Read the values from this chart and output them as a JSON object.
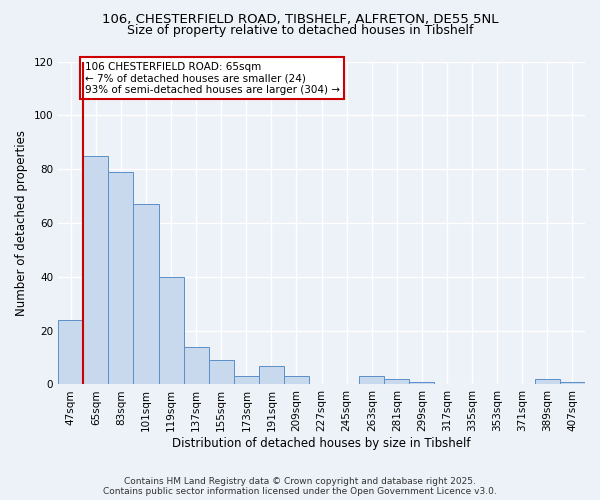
{
  "title_line1": "106, CHESTERFIELD ROAD, TIBSHELF, ALFRETON, DE55 5NL",
  "title_line2": "Size of property relative to detached houses in Tibshelf",
  "xlabel": "Distribution of detached houses by size in Tibshelf",
  "ylabel": "Number of detached properties",
  "categories": [
    "47sqm",
    "65sqm",
    "83sqm",
    "101sqm",
    "119sqm",
    "137sqm",
    "155sqm",
    "173sqm",
    "191sqm",
    "209sqm",
    "227sqm",
    "245sqm",
    "263sqm",
    "281sqm",
    "299sqm",
    "317sqm",
    "335sqm",
    "353sqm",
    "371sqm",
    "389sqm",
    "407sqm"
  ],
  "values": [
    24,
    85,
    79,
    67,
    40,
    14,
    9,
    3,
    7,
    3,
    0,
    0,
    3,
    2,
    1,
    0,
    0,
    0,
    0,
    2,
    1
  ],
  "bar_color": "#c9d9ed",
  "bar_edge_color": "#5b8fc9",
  "highlight_index": 1,
  "highlight_line_color": "#cc0000",
  "annotation_text": "106 CHESTERFIELD ROAD: 65sqm\n← 7% of detached houses are smaller (24)\n93% of semi-detached houses are larger (304) →",
  "annotation_box_color": "#ffffff",
  "annotation_box_edge": "#cc0000",
  "ylim": [
    0,
    120
  ],
  "yticks": [
    0,
    20,
    40,
    60,
    80,
    100,
    120
  ],
  "footer_line1": "Contains HM Land Registry data © Crown copyright and database right 2025.",
  "footer_line2": "Contains public sector information licensed under the Open Government Licence v3.0.",
  "bg_color": "#edf2f8",
  "plot_bg_color": "#edf2f8",
  "grid_color": "#ffffff",
  "title_fontsize": 9.5,
  "subtitle_fontsize": 9.0,
  "axis_label_fontsize": 8.5,
  "tick_fontsize": 7.5,
  "annotation_fontsize": 7.5,
  "footer_fontsize": 6.5
}
